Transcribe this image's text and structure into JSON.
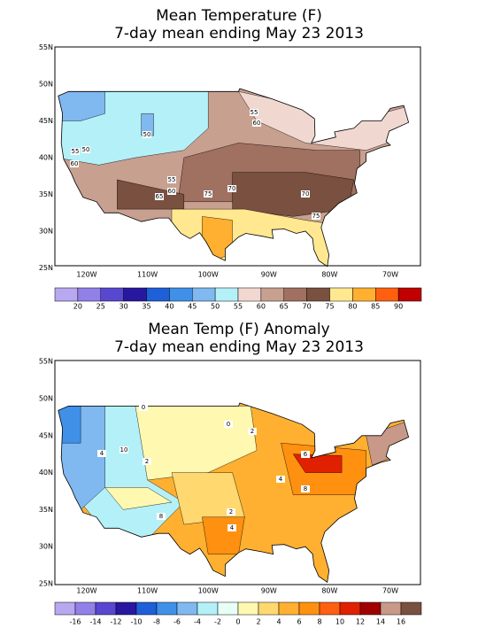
{
  "panels": [
    {
      "title": [
        "Mean Temperature (F)",
        "7-day mean ending May 23 2013"
      ],
      "lat_labels": [
        "55N",
        "50N",
        "45N",
        "40N",
        "35N",
        "30N",
        "25N"
      ],
      "lon_labels": [
        "120W",
        "110W",
        "100W",
        "90W",
        "80W",
        "70W"
      ],
      "contour_labels": [
        "55",
        "60",
        "50",
        "55",
        "50",
        "60",
        "55",
        "60",
        "65",
        "75",
        "70",
        "70",
        "75"
      ],
      "colorbar": [
        "20",
        "25",
        "30",
        "35",
        "40",
        "45",
        "50",
        "55",
        "60",
        "65",
        "70",
        "75",
        "80",
        "85",
        "90"
      ]
    },
    {
      "title": [
        "Mean Temp (F) Anomaly",
        "7-day mean ending May 23 2013"
      ],
      "lat_labels": [
        "55N",
        "50N",
        "45N",
        "40N",
        "35N",
        "30N",
        "25N"
      ],
      "lon_labels": [
        "120W",
        "110W",
        "100W",
        "90W",
        "80W",
        "70W"
      ],
      "contour_labels": [
        "4",
        "10",
        "2",
        "0",
        "2",
        "4",
        "6",
        "8",
        "2",
        "4",
        "8",
        "0"
      ],
      "colorbar": [
        "-16",
        "-14",
        "-12",
        "-10",
        "-8",
        "-6",
        "-4",
        "-2",
        "0",
        "2",
        "4",
        "6",
        "8",
        "10",
        "12",
        "14",
        "16"
      ]
    }
  ]
}
